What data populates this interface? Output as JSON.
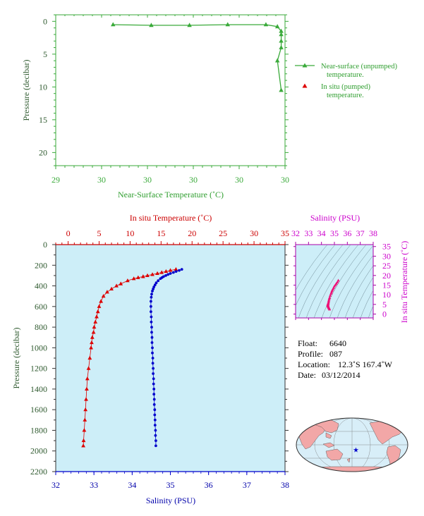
{
  "chart_data": [
    {
      "id": "near_surface",
      "type": "line",
      "xlabel": "Near-Surface Temperature (˚C)",
      "ylabel": "Pressure (decibar)",
      "x_tick_labels": [
        "29",
        "30",
        "30",
        "30",
        "30",
        "30"
      ],
      "xlim": [
        29.45,
        30.05
      ],
      "y_ticks": [
        0,
        5,
        10,
        15,
        20
      ],
      "ylim": [
        22,
        -1
      ],
      "series": [
        {
          "name": "Near-surface (unpumped) temperature.",
          "x": [
            29.6,
            29.7,
            29.8,
            29.9,
            30.0,
            30.03,
            30.04,
            30.04,
            30.04,
            30.04,
            30.03,
            30.04
          ],
          "y": [
            0.5,
            0.6,
            0.6,
            0.5,
            0.5,
            0.8,
            1.5,
            2.0,
            3.0,
            4.0,
            6.0,
            10.5
          ],
          "color": "#3aaa3a"
        },
        {
          "name": "In situ (pumped) temperature.",
          "x": [],
          "y": [],
          "color": "#dd0000"
        }
      ]
    },
    {
      "id": "main_profile",
      "type": "scatter",
      "top_axis_label": "In situ Temperature (˚C)",
      "bottom_axis_label": "Salinity (PSU)",
      "ylabel": "Pressure (decibar)",
      "temp_ticks": [
        0,
        5,
        10,
        15,
        20,
        25,
        30,
        35
      ],
      "sal_ticks": [
        32,
        33,
        34,
        35,
        36,
        37,
        38
      ],
      "pressure_ticks": [
        0,
        200,
        400,
        600,
        800,
        1000,
        1200,
        1400,
        1600,
        1800,
        2000,
        2200
      ],
      "temp_lim": [
        -2,
        35
      ],
      "sal_lim": [
        32,
        38
      ],
      "pressure_lim": [
        0,
        2200
      ],
      "temperature": {
        "color": "#dd0000",
        "p": [
          240,
          250,
          260,
          270,
          280,
          290,
          300,
          310,
          320,
          330,
          350,
          380,
          400,
          430,
          460,
          500,
          550,
          600,
          650,
          700,
          750,
          800,
          850,
          900,
          950,
          1000,
          1100,
          1200,
          1300,
          1400,
          1500,
          1600,
          1700,
          1800,
          1900,
          1950
        ],
        "t": [
          17.4,
          16.5,
          15.8,
          15.1,
          14.4,
          13.6,
          12.8,
          12.1,
          11.3,
          10.6,
          9.6,
          8.5,
          7.8,
          7.0,
          6.3,
          5.7,
          5.3,
          5.0,
          4.8,
          4.6,
          4.4,
          4.2,
          4.1,
          3.9,
          3.8,
          3.7,
          3.5,
          3.3,
          3.1,
          3.0,
          2.9,
          2.8,
          2.7,
          2.6,
          2.5,
          2.45
        ]
      },
      "salinity": {
        "color": "#0000cc",
        "p": [
          240,
          250,
          260,
          270,
          280,
          290,
          300,
          310,
          320,
          330,
          350,
          370,
          390,
          410,
          430,
          450,
          480,
          510,
          550,
          600,
          650,
          700,
          750,
          800,
          850,
          900,
          950,
          1000,
          1050,
          1100,
          1150,
          1200,
          1250,
          1300,
          1350,
          1400,
          1450,
          1500,
          1550,
          1600,
          1650,
          1700,
          1750,
          1800,
          1850,
          1900,
          1950
        ],
        "s": [
          35.3,
          35.23,
          35.15,
          35.08,
          35.0,
          34.94,
          34.88,
          34.82,
          34.78,
          34.74,
          34.68,
          34.63,
          34.6,
          34.57,
          34.55,
          34.53,
          34.51,
          34.5,
          34.49,
          34.49,
          34.49,
          34.5,
          34.5,
          34.51,
          34.51,
          34.52,
          34.52,
          34.53,
          34.53,
          34.54,
          34.54,
          34.55,
          34.55,
          34.56,
          34.56,
          34.57,
          34.57,
          34.58,
          34.58,
          34.59,
          34.59,
          34.6,
          34.6,
          34.61,
          34.61,
          34.62,
          34.62
        ]
      }
    },
    {
      "id": "ts_diagram",
      "type": "scatter",
      "top_axis_label": "Salinity (PSU)",
      "right_axis_label": "In situ Temperature (˚C)",
      "sal_ticks": [
        32,
        33,
        34,
        35,
        36,
        37,
        38
      ],
      "temp_ticks": [
        0,
        5,
        10,
        15,
        20,
        25,
        30,
        35
      ],
      "sal_lim": [
        32,
        38
      ],
      "temp_lim": [
        -2,
        36
      ],
      "color": "#ee1177",
      "points_s": [
        35.3,
        35.23,
        35.15,
        35.08,
        35.0,
        34.94,
        34.88,
        34.82,
        34.78,
        34.74,
        34.68,
        34.63,
        34.6,
        34.57,
        34.55,
        34.53,
        34.51,
        34.5,
        34.49,
        34.49,
        34.5,
        34.51,
        34.52,
        34.53,
        34.55,
        34.57,
        34.6,
        34.62
      ],
      "points_t": [
        17.4,
        16.5,
        15.8,
        15.1,
        14.4,
        13.6,
        12.8,
        12.1,
        11.3,
        10.6,
        9.6,
        8.5,
        7.8,
        7.0,
        6.3,
        5.7,
        5.3,
        5.0,
        4.8,
        4.6,
        4.4,
        4.2,
        4.0,
        3.8,
        3.5,
        3.2,
        2.9,
        2.45
      ]
    }
  ],
  "float_info": {
    "float_label": "Float:",
    "float_value": "6640",
    "profile_label": "Profile:",
    "profile_value": "087",
    "location_label": "Location:",
    "location_value": "12.3˚S  167.4˚W",
    "date_label": "Date:",
    "date_value": "03/12/2014"
  },
  "map": {
    "marker_color": "#0000cc",
    "ocean_color": "#d8eef8",
    "land_color": "#f2a7a7"
  }
}
